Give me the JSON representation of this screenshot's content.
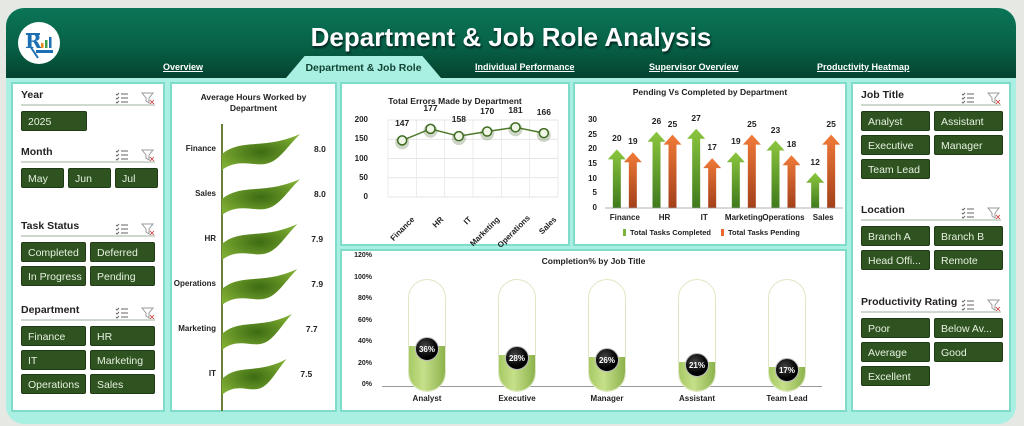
{
  "header": {
    "title": "Department & Job Role Analysis",
    "logo": "company-logo"
  },
  "nav": {
    "tabs": [
      {
        "label": "Overview",
        "active": false
      },
      {
        "label": "Department & Job Role",
        "active": true
      },
      {
        "label": "Individual Performance",
        "active": false
      },
      {
        "label": "Supervisor Overview",
        "active": false
      },
      {
        "label": "Productivity Heatmap",
        "active": false
      }
    ]
  },
  "left_slicers": {
    "year": {
      "title": "Year",
      "items": [
        "2025"
      ]
    },
    "month": {
      "title": "Month",
      "items": [
        "May",
        "Jun",
        "Jul"
      ]
    },
    "task_status": {
      "title": "Task Status",
      "items": [
        "Completed",
        "Deferred",
        "In Progress",
        "Pending"
      ]
    },
    "department": {
      "title": "Department",
      "items": [
        "Finance",
        "HR",
        "IT",
        "Marketing",
        "Operations",
        "Sales"
      ]
    }
  },
  "right_slicers": {
    "job_title": {
      "title": "Job Title",
      "items": [
        "Analyst",
        "Assistant",
        "Executive",
        "Manager",
        "Team Lead"
      ]
    },
    "location": {
      "title": "Location",
      "items": [
        "Branch A",
        "Branch B",
        "Head Offi...",
        "Remote"
      ]
    },
    "productivity_rating": {
      "title": "Productivity Rating",
      "items": [
        "Poor",
        "Below Av...",
        "Average",
        "Good",
        "Excellent"
      ]
    }
  },
  "icons": {
    "multi_select": "multi-select-icon",
    "clear_filter": "clear-filter-icon"
  },
  "colors": {
    "header_green": "#076146",
    "accent_mint": "#a9f0e3",
    "slicer_button": "#2e5320",
    "completed_green": "#7bb33a",
    "pending_orange": "#e8672a",
    "flag_green": "#5e8f1f"
  },
  "chart_data": [
    {
      "id": "avg_hours",
      "type": "bar",
      "title": "Average Hours Worked by Department",
      "orientation": "horizontal",
      "categories": [
        "Finance",
        "Sales",
        "HR",
        "Operations",
        "Marketing",
        "IT"
      ],
      "values": [
        8.0,
        8.0,
        7.9,
        7.9,
        7.7,
        7.5
      ],
      "value_labels": [
        "8.0",
        "8.0",
        "7.9",
        "7.9",
        "7.7",
        "7.5"
      ],
      "xlabel": "",
      "ylabel": ""
    },
    {
      "id": "total_errors",
      "type": "line",
      "title": "Total Errors Made by Department",
      "categories": [
        "Finance",
        "HR",
        "IT",
        "Marketing",
        "Operations",
        "Sales"
      ],
      "values": [
        147,
        177,
        158,
        170,
        181,
        166
      ],
      "yticks": [
        "0",
        "50",
        "100",
        "150",
        "200"
      ],
      "ylim": [
        0,
        200
      ],
      "grid": true
    },
    {
      "id": "pending_vs_completed",
      "type": "bar",
      "title": "Pending Vs Completed by Department",
      "categories": [
        "Finance",
        "HR",
        "IT",
        "Marketing",
        "Operations",
        "Sales"
      ],
      "series": [
        {
          "name": "Total Tasks Completed",
          "values": [
            20,
            26,
            27,
            19,
            23,
            12
          ],
          "color": "#7bb33a"
        },
        {
          "name": "Total Tasks Pending",
          "values": [
            19,
            25,
            17,
            25,
            18,
            25
          ],
          "color": "#e8672a"
        }
      ],
      "yticks": [
        "0",
        "5",
        "10",
        "15",
        "20",
        "25",
        "30"
      ],
      "ylim": [
        0,
        30
      ],
      "legend_position": "bottom"
    },
    {
      "id": "completion_by_job",
      "type": "bar",
      "title": "Completion% by Job Title",
      "categories": [
        "Analyst",
        "Executive",
        "Manager",
        "Assistant",
        "Team Lead"
      ],
      "values": [
        36,
        28,
        26,
        21,
        17
      ],
      "value_labels": [
        "36%",
        "28%",
        "26%",
        "21%",
        "17%"
      ],
      "yticks": [
        "0%",
        "20%",
        "40%",
        "60%",
        "80%",
        "100%",
        "120%"
      ],
      "ylim": [
        0,
        120
      ]
    }
  ]
}
